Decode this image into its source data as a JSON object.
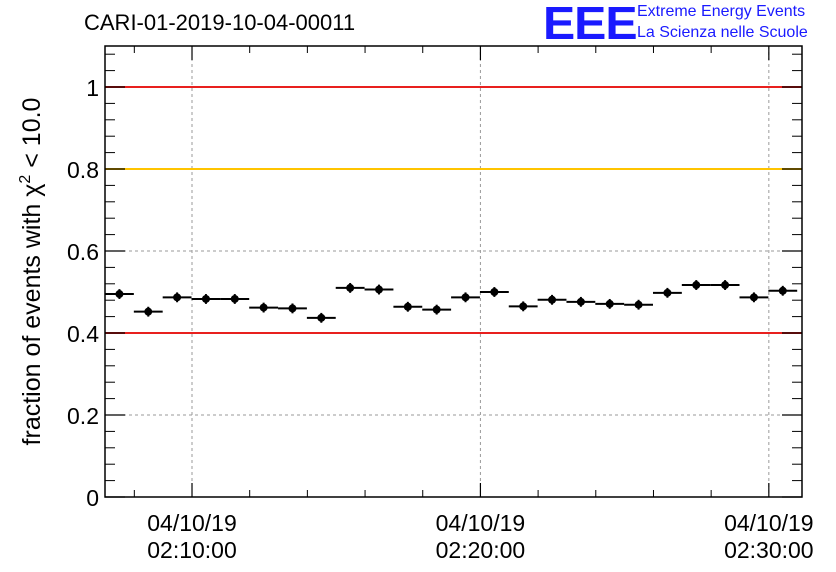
{
  "chart_data": {
    "type": "scatter",
    "title": "CARI-01-2019-10-04-00011",
    "ylabel": "fraction of events with χ² < 10.0",
    "ylabel_parts": {
      "prefix": "fraction of events with ",
      "symbol": "χ",
      "sup": "2",
      "suffix": " < 10.0"
    },
    "xlabel": "",
    "ylim": [
      0,
      1.1
    ],
    "y_ticks": [
      0,
      0.2,
      0.4,
      0.6,
      0.8,
      1
    ],
    "y_tick_labels": [
      "0",
      "0.2",
      "0.4",
      "0.6",
      "0.8",
      "1"
    ],
    "xlim": [
      "02:06:59",
      "02:31:09"
    ],
    "x_ticks": [
      {
        "date": "04/10/19",
        "time": "02:10:00"
      },
      {
        "date": "04/10/19",
        "time": "02:20:00"
      },
      {
        "date": "04/10/19",
        "time": "02:30:00"
      }
    ],
    "grid": true,
    "reference_lines": [
      {
        "y": 1.0,
        "color": "#e8201e"
      },
      {
        "y": 0.8,
        "color": "#ffc400"
      },
      {
        "y": 0.4,
        "color": "#e8201e"
      }
    ],
    "series": [
      {
        "x_bin_width_minutes": 1,
        "x": [
          "02:07:29",
          "02:08:29",
          "02:09:29",
          "02:10:29",
          "02:11:29",
          "02:12:29",
          "02:13:29",
          "02:14:29",
          "02:15:29",
          "02:16:29",
          "02:17:29",
          "02:18:29",
          "02:19:29",
          "02:20:29",
          "02:21:29",
          "02:22:29",
          "02:23:29",
          "02:24:29",
          "02:25:29",
          "02:26:29",
          "02:27:29",
          "02:28:29",
          "02:29:29",
          "02:30:29"
        ],
        "y": [
          0.495,
          0.452,
          0.487,
          0.483,
          0.483,
          0.462,
          0.46,
          0.437,
          0.51,
          0.506,
          0.464,
          0.457,
          0.487,
          0.5,
          0.465,
          0.481,
          0.476,
          0.471,
          0.469,
          0.498,
          0.517,
          0.517,
          0.487,
          0.503
        ],
        "y_err": 0.012,
        "color": "#000000"
      }
    ]
  },
  "logo": {
    "mark": "EEE",
    "line1": "Extreme Energy Events",
    "line2": "La Scienza nelle Scuole"
  }
}
